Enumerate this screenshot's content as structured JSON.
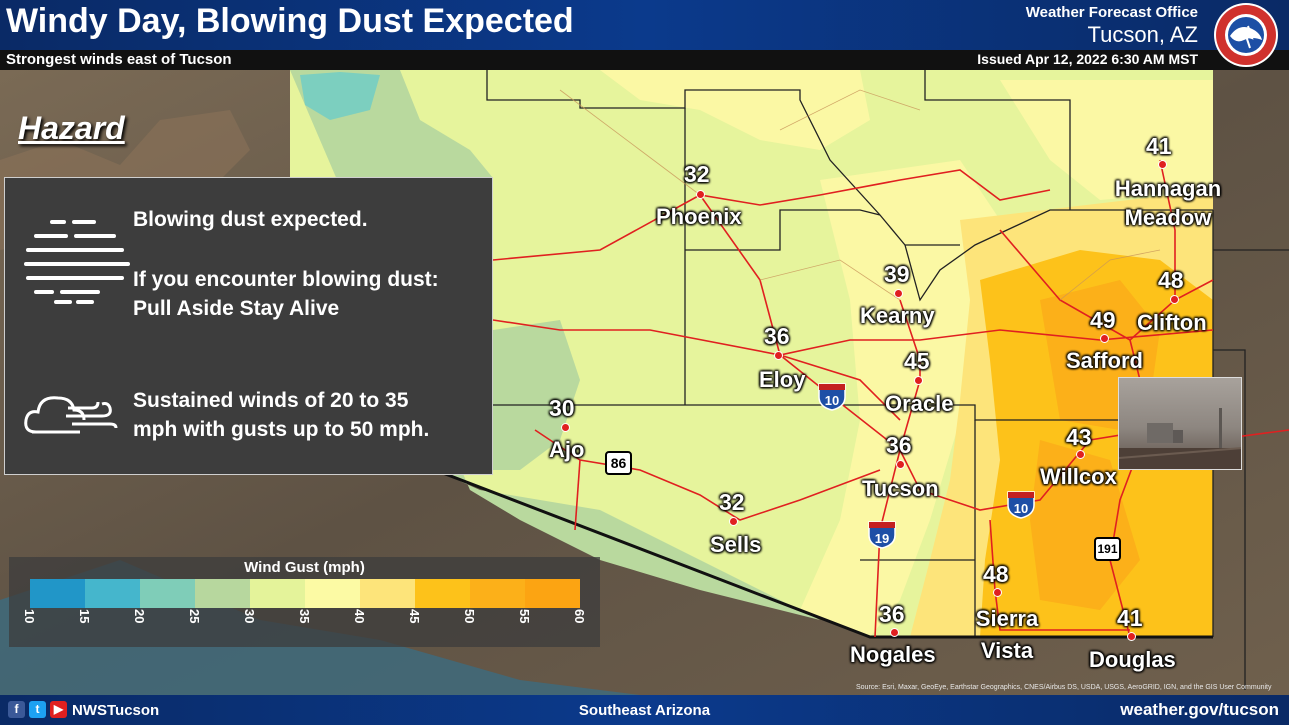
{
  "header": {
    "title": "Windy Day, Blowing Dust Expected",
    "subtitle": "Strongest winds east of Tucson",
    "office_line1": "Weather Forecast Office",
    "office_line2": "Tucson, AZ",
    "issued": "Issued Apr 12, 2022 6:30 AM MST",
    "logo_text": "NATIONAL WEATHER SERVICE"
  },
  "hazard_label": "Hazard",
  "panel": {
    "dust_line1": "Blowing dust expected.",
    "dust_line2": "If you encounter blowing dust:",
    "dust_line3": "Pull Aside Stay Alive",
    "wind_line1": "Sustained winds of 20 to 35",
    "wind_line2": "mph with gusts up to 50 mph.",
    "dust_icon": "blowing-dust-icon",
    "wind_icon": "wind-cloud-icon"
  },
  "cities": [
    {
      "name": "Phoenix",
      "gust": "32"
    },
    {
      "name": "Kearny",
      "gust": "39"
    },
    {
      "name": "Eloy",
      "gust": "36"
    },
    {
      "name": "Oracle",
      "gust": "45"
    },
    {
      "name": "Ajo",
      "gust": "30"
    },
    {
      "name": "Tucson",
      "gust": "36"
    },
    {
      "name": "Sells",
      "gust": "32"
    },
    {
      "name": "Nogales",
      "gust": "36"
    },
    {
      "name": "Sierra Vista",
      "gust": "48"
    },
    {
      "name": "Douglas",
      "gust": "41"
    },
    {
      "name": "Willcox",
      "gust": "43"
    },
    {
      "name": "Safford",
      "gust": "49"
    },
    {
      "name": "Clifton",
      "gust": "48"
    },
    {
      "name": "Hannagan Meadow",
      "gust": "41"
    }
  ],
  "highway_shields": {
    "i10_a": "10",
    "i10_b": "10",
    "i19": "19",
    "us86": "86",
    "us191": "191",
    "interstate_word": "INTERSTATE"
  },
  "legend": {
    "title": "Wind Gust (mph)",
    "ticks": [
      "10",
      "15",
      "20",
      "25",
      "30",
      "35",
      "40",
      "45",
      "50",
      "55",
      "60"
    ],
    "colors": [
      "#2196c8",
      "#45b6cc",
      "#7fcdb8",
      "#b7d79e",
      "#e4f39a",
      "#fcfaa4",
      "#fde47a",
      "#fdc21a",
      "#fcb019",
      "#fca412"
    ]
  },
  "footer": {
    "social": "NWSTucson",
    "region": "Southeast Arizona",
    "website": "weather.gov/tucson",
    "source": "Source: Esri, Maxar, GeoEye, Earthstar Geographics, CNES/Airbus DS, USDA, USGS, AeroGRID, IGN, and the GIS User Community"
  }
}
